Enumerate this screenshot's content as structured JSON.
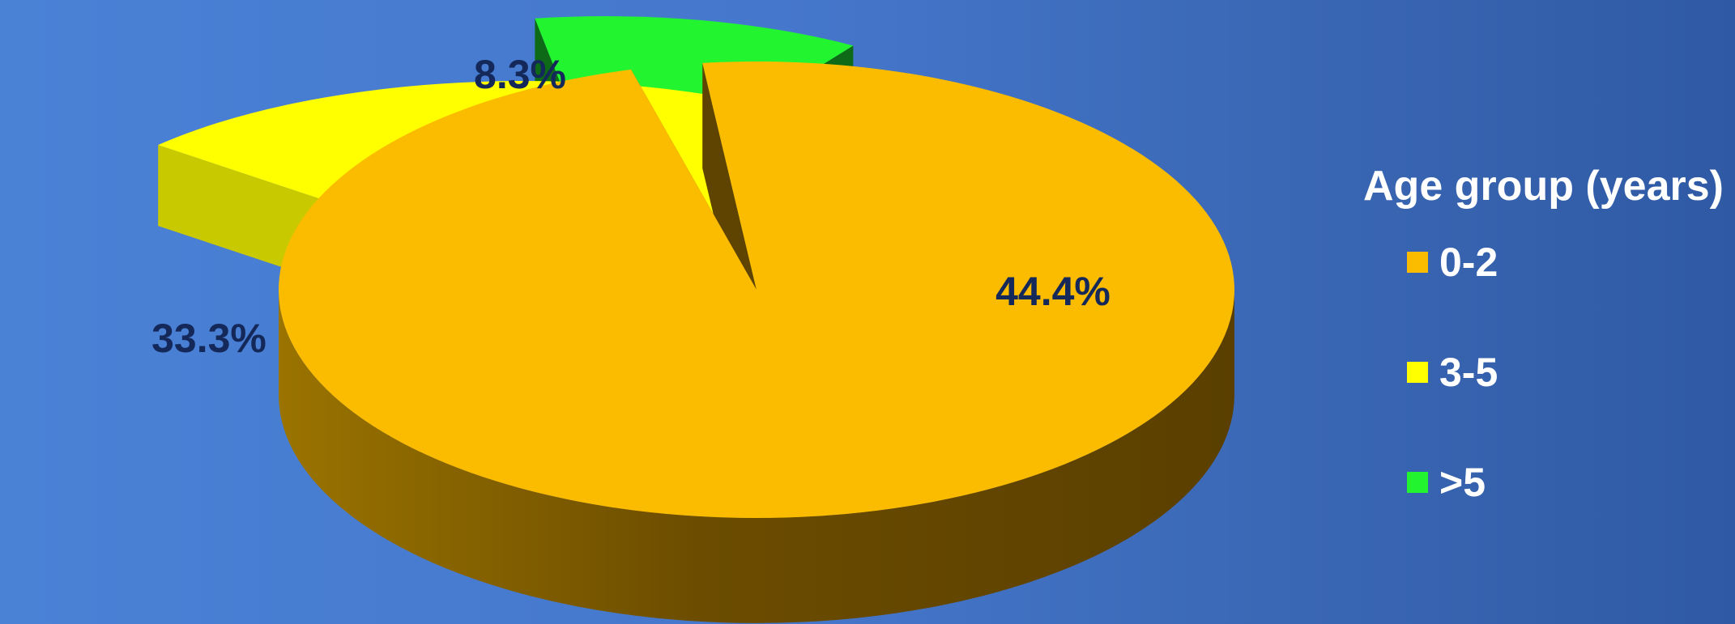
{
  "chart_data": {
    "type": "pie",
    "legend_title": "Age group (years)",
    "legend_position": "right",
    "categories": [
      "0-2",
      "3-5",
      ">5"
    ],
    "values": [
      44.4,
      33.3,
      8.3
    ],
    "data_labels": [
      "44.4%",
      "33.3%",
      "8.3%"
    ],
    "colors": [
      "#fbbc00",
      "#ffff00",
      "#22f530"
    ]
  }
}
